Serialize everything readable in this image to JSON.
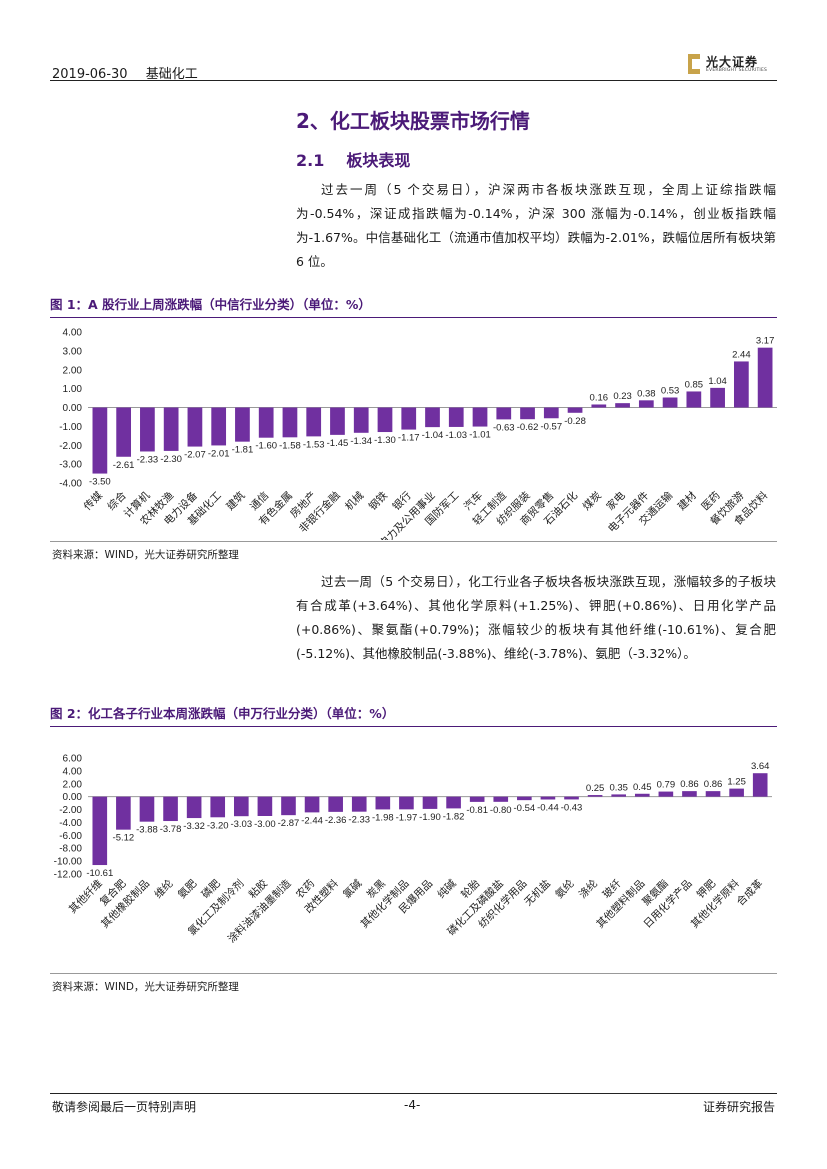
{
  "header": {
    "date": "2019-06-30",
    "sector": "基础化工",
    "logo_cn": "光大证券",
    "logo_en": "EVERBRIGHT SECURITIES"
  },
  "section": {
    "title": "2、化工板块股票市场行情",
    "sub_num": "2.1",
    "sub_title": "板块表现"
  },
  "paragraph1": "过去一周（5 个交易日），沪深两市各板块涨跌互现，全周上证综指跌幅为-0.54%，深证成指跌幅为-0.14%，沪深 300 涨幅为-0.14%，创业板指跌幅为-1.67%。中信基础化工（流通市值加权平均）跌幅为-2.01%，跌幅位居所有板块第 6 位。",
  "figure1": {
    "title": "图 1：A 股行业上周涨跌幅（中信行业分类）（单位：%）",
    "source": "资料来源：WIND，光大证券研究所整理"
  },
  "paragraph2": "过去一周（5 个交易日），化工行业各子板块各板块涨跌互现，涨幅较多的子板块有合成革(+3.64%)、其他化学原料(+1.25%)、钾肥(+0.86%)、日用化学产品(+0.86%)、聚氨酯(+0.79%)；涨幅较少的板块有其他纤维(-10.61%)、复合肥(-5.12%)、其他橡胶制品(-3.88%)、维纶(-3.78%)、氨肥（-3.32%）。",
  "figure2": {
    "title": "图 2：化工各子行业本周涨跌幅（申万行业分类）（单位：%）",
    "source": "资料来源：WIND，光大证券研究所整理"
  },
  "footer": {
    "left": "敬请参阅最后一页特别声明",
    "center": "-4-",
    "right": "证券研究报告"
  },
  "colors": {
    "accent": "#4b1a78",
    "bar": "#7030a0",
    "gold": "#c8a34a"
  },
  "chart_data": [
    {
      "type": "bar",
      "title": "A 股行业上周涨跌幅（中信行业分类）（单位：%）",
      "categories": [
        "传媒",
        "综合",
        "计算机",
        "农林牧渔",
        "电力设备",
        "基础化工",
        "建筑",
        "通信",
        "有色金属",
        "房地产",
        "非银行金融",
        "机械",
        "钢铁",
        "银行",
        "电力及公用事业",
        "国防军工",
        "汽车",
        "轻工制造",
        "纺织服装",
        "商贸零售",
        "石油石化",
        "煤炭",
        "家电",
        "电子元器件",
        "交通运输",
        "建材",
        "医药",
        "餐饮旅游",
        "食品饮料"
      ],
      "values": [
        -3.5,
        -2.61,
        -2.33,
        -2.3,
        -2.07,
        -2.01,
        -1.81,
        -1.6,
        -1.58,
        -1.53,
        -1.45,
        -1.34,
        -1.3,
        -1.17,
        -1.04,
        -1.03,
        -1.01,
        -0.63,
        -0.62,
        -0.57,
        -0.28,
        0.16,
        0.23,
        0.38,
        0.53,
        0.85,
        1.04,
        2.44,
        3.17
      ],
      "labels": [
        "-3.50",
        "-2.61",
        "-2.33",
        "-2.30",
        "-2.07",
        "-2.01",
        "-1.81",
        "-1.60",
        "-1.58",
        "-1.53",
        "-1.45",
        "-1.34",
        "-1.30",
        "-1.17",
        "-1.04",
        "-1.03",
        "-1.01",
        "-0.63",
        "-0.62",
        "-0.57",
        "-0.28",
        "0.16",
        "0.23",
        "0.38",
        "0.53",
        "0.85",
        "1.04",
        "2.44",
        "3.17"
      ],
      "yticks": [
        "4.00",
        "3.00",
        "2.00",
        "1.00",
        "0.00",
        "-1.00",
        "-2.00",
        "-3.00",
        "-4.00"
      ],
      "ylim": [
        -4,
        4
      ]
    },
    {
      "type": "bar",
      "title": "化工各子行业本周涨跌幅（申万行业分类）（单位：%）",
      "categories": [
        "其他纤维",
        "复合肥",
        "其他橡胶制品",
        "维纶",
        "氨肥",
        "磷肥",
        "氯化工及制冷剂",
        "粘胶",
        "涂料油漆油墨制造",
        "农药",
        "改性塑料",
        "氯碱",
        "炭黑",
        "其他化学制品",
        "民爆用品",
        "纯碱",
        "轮胎",
        "磷化工及磷酸盐",
        "纺织化学用品",
        "无机盐",
        "氨纶",
        "涤纶",
        "玻纤",
        "其他塑料制品",
        "聚氨酯",
        "日用化学产品",
        "钾肥",
        "其他化学原料",
        "合成革"
      ],
      "values": [
        -10.61,
        -5.12,
        -3.88,
        -3.78,
        -3.32,
        -3.2,
        -3.03,
        -3.0,
        -2.87,
        -2.44,
        -2.36,
        -2.33,
        -1.98,
        -1.97,
        -1.9,
        -1.82,
        -0.81,
        -0.8,
        -0.54,
        -0.44,
        -0.43,
        0.25,
        0.35,
        0.45,
        0.79,
        0.86,
        0.86,
        1.25,
        3.64
      ],
      "labels": [
        "-10.61",
        "-5.12",
        "-3.88",
        "-3.78",
        "-3.32",
        "-3.20",
        "-3.03",
        "-3.00",
        "-2.87",
        "-2.44",
        "-2.36",
        "-2.33",
        "-1.98",
        "-1.97",
        "-1.90",
        "-1.82",
        "-0.81",
        "-0.80",
        "-0.54",
        "-0.44",
        "-0.43",
        "0.25",
        "0.35",
        "0.45",
        "0.79",
        "0.86",
        "0.86",
        "1.25",
        "3.64"
      ],
      "yticks": [
        "6.00",
        "4.00",
        "2.00",
        "0.00",
        "-2.00",
        "-4.00",
        "-6.00",
        "-8.00",
        "-10.00",
        "-12.00"
      ],
      "ylim": [
        -12,
        6
      ]
    }
  ]
}
